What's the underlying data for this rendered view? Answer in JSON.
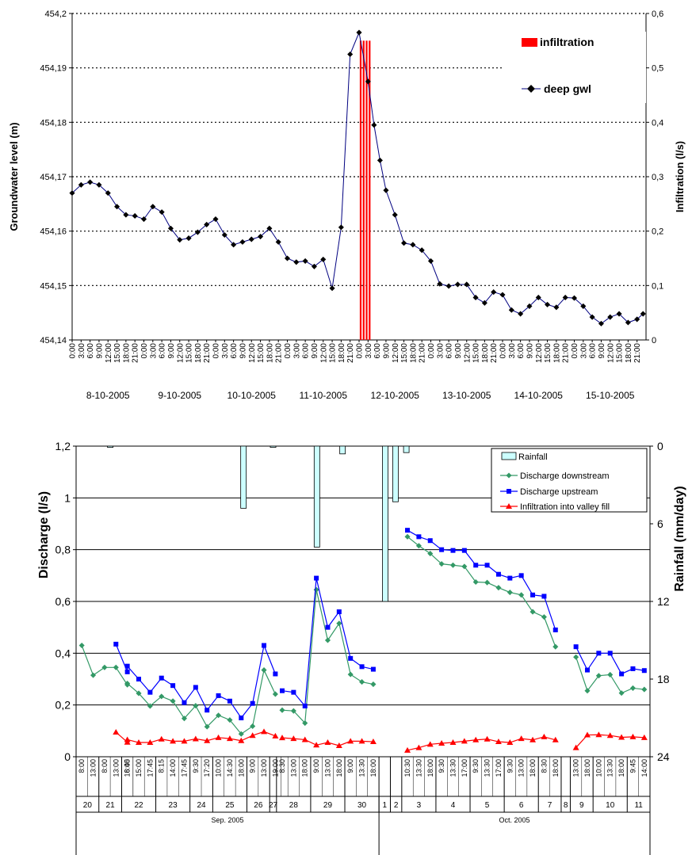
{
  "chart_data": [
    {
      "type": "line",
      "ylabel": "Groundwater level (m)",
      "y2label": "Infiltration (l/s)",
      "ylim": [
        454.14,
        454.2
      ],
      "y2lim": [
        0,
        0.6
      ],
      "y_ticks": [
        "454,14",
        "454,15",
        "454,16",
        "454,17",
        "454,18",
        "454,19",
        "454,2"
      ],
      "y2_ticks": [
        "0",
        "0,1",
        "0,2",
        "0,3",
        "0,4",
        "0,5",
        "0,6"
      ],
      "x_hour_labels": [
        "0:00",
        "3:00",
        "6:00",
        "9:00",
        "12:00",
        "15:00",
        "18:00",
        "21:00"
      ],
      "day_labels": [
        "8-10-2005",
        "9-10-2005",
        "10-10-2005",
        "11-10-2005",
        "12-10-2005",
        "13-10-2005",
        "14-10-2005",
        "15-10-2005"
      ],
      "grid": "horizontal dotted",
      "legend_placement": "top-right",
      "infiltration_legend": "infiltration",
      "gwl_legend": "deep gwl",
      "gwl_x_hours": [
        0,
        3,
        6,
        9,
        12,
        15,
        18,
        21,
        24,
        27,
        30,
        33,
        36,
        39,
        42,
        45,
        48,
        51,
        54,
        57,
        60,
        63,
        66,
        69,
        72,
        75,
        78,
        81,
        84,
        87,
        90,
        93,
        96,
        99,
        101,
        103,
        105,
        108,
        111,
        114,
        117,
        120,
        123,
        126,
        129,
        132,
        135,
        138,
        141,
        144,
        147,
        150,
        153,
        156,
        159,
        162,
        165,
        168,
        171,
        174,
        177,
        180,
        183,
        186,
        189,
        191
      ],
      "gwl_values": [
        454.167,
        454.1685,
        454.169,
        454.1685,
        454.167,
        454.1645,
        454.163,
        454.1628,
        454.1622,
        454.1645,
        454.1635,
        454.1605,
        454.1584,
        454.1587,
        454.1598,
        454.1612,
        454.1622,
        454.1593,
        454.1575,
        454.158,
        454.1585,
        454.159,
        454.1605,
        454.158,
        454.155,
        454.1543,
        454.1545,
        454.1535,
        454.1548,
        454.1495,
        454.1607,
        454.1925,
        454.1965,
        454.1875,
        454.1795,
        454.173,
        454.1675,
        454.163,
        454.1578,
        454.1575,
        454.1565,
        454.1545,
        454.1503,
        454.1499,
        454.1502,
        454.1502,
        454.1478,
        454.1468,
        454.1488,
        454.1483,
        454.1455,
        454.1448,
        454.1462,
        454.1478,
        454.1465,
        454.146,
        454.1478,
        454.1477,
        454.1462,
        454.1442,
        454.143,
        454.1442,
        454.1448,
        454.1432,
        454.1438,
        454.1448
      ],
      "infiltration_x_hours": [
        96.5,
        97.5,
        98.5,
        99.5
      ],
      "infiltration_values": [
        0.55,
        0.55,
        0.55,
        0.55
      ]
    },
    {
      "type": "line",
      "ylabel": "Discharge (l/s)",
      "y2label": "Rainfall (mm/day)",
      "ylim": [
        0,
        1.2
      ],
      "y2lim": [
        24,
        0
      ],
      "y_ticks": [
        "0",
        "0,2",
        "0,4",
        "0,6",
        "0,8",
        "1",
        "1,2"
      ],
      "y2_ticks": [
        "24",
        "18",
        "12",
        "6",
        "0"
      ],
      "grid": "horizontal solid",
      "legend_placement": "top-right",
      "series_names": [
        "Rainfall",
        "Discharge downstream",
        "Discharge upstream",
        "Infiltration into valley fill"
      ],
      "x_time_labels": [
        "8:00",
        "13:00",
        "8:00",
        "13:00",
        "16:45",
        "8:00",
        "15:00",
        "17:45",
        "8:15",
        "14:00",
        "17:45",
        "9:30",
        "17:20",
        "10:00",
        "14:30",
        "18:00",
        "9:00",
        "13:00",
        "19:00",
        "8:30",
        "13:00",
        "18:00",
        "9:00",
        "13:00",
        "18:00",
        "9:00",
        "13:30",
        "18:00",
        "10:30",
        "13:30",
        "18:00",
        "9:30",
        "13:30",
        "17:00",
        "9:30",
        "13:30",
        "17:00",
        "9:30",
        "13:00",
        "18:00",
        "8:30",
        "18:00",
        "13:00",
        "18:00",
        "10:00",
        "13:30",
        "18:00",
        "9:45",
        "14:00"
      ],
      "day_labels": [
        "20",
        "21",
        "22",
        "23",
        "24",
        "25",
        "26",
        "27",
        "28",
        "29",
        "30",
        "1",
        "2",
        "3",
        "4",
        "5",
        "6",
        "7",
        "8",
        "9",
        "10",
        "11"
      ],
      "month_labels": [
        "Sep. 2005",
        "Oct. 2005"
      ],
      "discharge_downstream": [
        0.43,
        0.315,
        0.345,
        0.345,
        0.278,
        0.283,
        0.245,
        0.196,
        0.233,
        0.215,
        0.148,
        0.197,
        0.116,
        0.16,
        0.142,
        0.088,
        0.118,
        0.335,
        0.242,
        0.18,
        0.177,
        0.13,
        0.645,
        0.45,
        0.515,
        0.318,
        0.289,
        0.28,
        0.85,
        0.815,
        0.785,
        0.745,
        0.74,
        0.735,
        0.675,
        0.673,
        0.653,
        0.635,
        0.625,
        0.56,
        0.54,
        0.425,
        0.385,
        0.255,
        0.313,
        0.317,
        0.246,
        0.265,
        0.26
      ],
      "discharge_upstream": [
        null,
        null,
        null,
        0.435,
        0.328,
        0.35,
        0.3,
        0.249,
        0.304,
        0.275,
        0.209,
        0.268,
        0.18,
        0.236,
        0.215,
        0.15,
        0.206,
        0.43,
        0.32,
        0.255,
        0.249,
        0.196,
        0.69,
        0.5,
        0.56,
        0.38,
        0.348,
        0.338,
        0.875,
        0.85,
        0.835,
        0.8,
        0.797,
        0.797,
        0.74,
        0.74,
        0.705,
        0.69,
        0.7,
        0.625,
        0.62,
        0.49,
        0.425,
        0.335,
        0.4,
        0.4,
        0.32,
        0.34,
        0.333
      ],
      "infiltration": [
        null,
        null,
        null,
        0.095,
        0.056,
        0.066,
        0.055,
        0.055,
        0.068,
        0.06,
        0.06,
        0.069,
        0.062,
        0.074,
        0.07,
        0.062,
        0.082,
        0.097,
        0.08,
        0.073,
        0.07,
        0.066,
        0.045,
        0.055,
        0.043,
        0.06,
        0.06,
        0.058,
        0.025,
        0.035,
        0.048,
        0.052,
        0.055,
        0.06,
        0.065,
        0.068,
        0.058,
        0.055,
        0.07,
        0.065,
        0.077,
        0.065,
        0.035,
        0.084,
        0.085,
        0.082,
        0.075,
        0.077,
        0.074
      ],
      "rainfall_bars": [
        {
          "day": "21",
          "value": 0.1
        },
        {
          "day": "25",
          "value": 4.8
        },
        {
          "day": "27",
          "value": 0.1
        },
        {
          "day": "29",
          "value": 7.8
        },
        {
          "day": "30",
          "value": 0.6
        },
        {
          "day": "1",
          "value": 12.0
        },
        {
          "day": "2",
          "value": 4.3
        },
        {
          "day": "3",
          "value": 0.5
        }
      ]
    }
  ]
}
